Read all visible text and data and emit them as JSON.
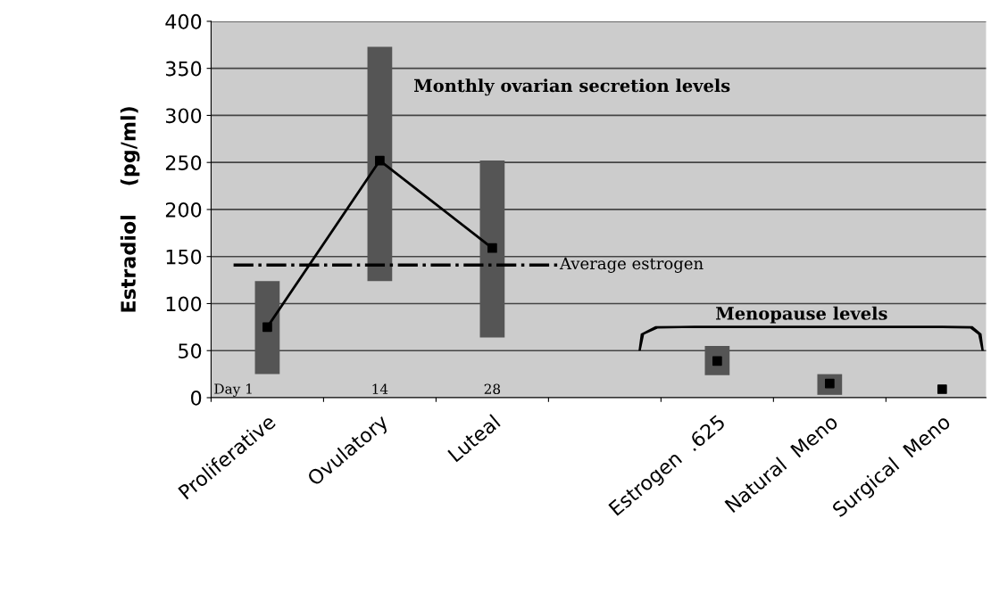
{
  "chart_data": {
    "type": "bar",
    "categories": [
      "Proliferative",
      "Ovulatory",
      "Luteal",
      null,
      "Estrogen  .625",
      "Natural  Meno",
      "Surgical  Meno"
    ],
    "ylabel": "Estradiol    (pg/ml)",
    "series": [
      {
        "color": "#555555",
        "base": [
          25,
          124,
          64,
          null,
          24,
          3,
          null
        ],
        "values": [
          99,
          249,
          188,
          null,
          31,
          22,
          null
        ]
      },
      {
        "type": "line",
        "color": "#000000",
        "marker": "square",
        "values": [
          75,
          252,
          159,
          null,
          null,
          null,
          null
        ]
      },
      {
        "type": "scatter",
        "color": "#000000",
        "marker": "square",
        "values": [
          null,
          null,
          null,
          null,
          39,
          15,
          9
        ]
      }
    ],
    "ylim": [
      0,
      400
    ],
    "yticks": [
      0,
      50,
      100,
      150,
      200,
      250,
      300,
      350,
      400
    ],
    "grid": "y",
    "legend": false,
    "ref_lines": [
      {
        "axis": "y",
        "value": 141,
        "label": "Average estrogen",
        "color": "#000000",
        "line_style": "dashdot"
      }
    ],
    "annotations": [
      "Day 1",
      "14",
      "28",
      "Monthly ovarian secretion levels",
      "Menopause levels"
    ]
  }
}
